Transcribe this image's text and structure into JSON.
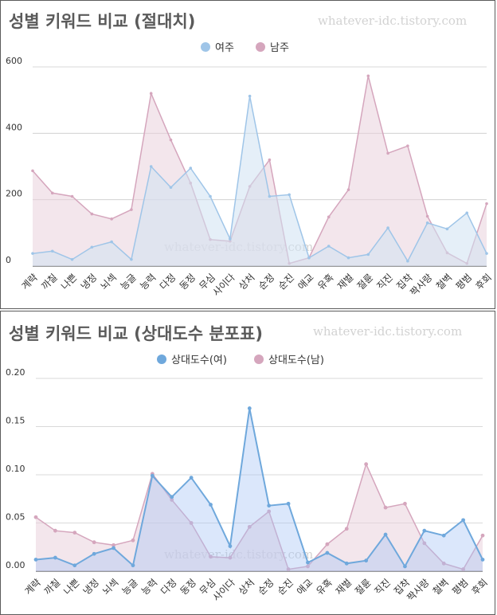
{
  "watermark": "whatever-idc.tistory.com",
  "colors": {
    "female_light": "#9fc5e8",
    "male_light": "#d5a6bd",
    "female_dark": "#6fa8dc",
    "male_dark": "#d5a6bd"
  },
  "charts": [
    {
      "title": "성별 키워드 비교 (절대치)",
      "legend": [
        {
          "label": "여주",
          "color": "#9fc5e8"
        },
        {
          "label": "남주",
          "color": "#d5a6bd"
        }
      ]
    },
    {
      "title": "성별 키워드 비교 (상대도수 분포표)",
      "legend": [
        {
          "label": "상대도수(여)",
          "color": "#6fa8dc"
        },
        {
          "label": "상대도수(남)",
          "color": "#d5a6bd"
        }
      ]
    }
  ],
  "chart_data": [
    {
      "type": "area",
      "title": "성별 키워드 비교 (절대치)",
      "categories": [
        "계략",
        "까칠",
        "나쁜",
        "냉정",
        "뇌섹",
        "능글",
        "능력",
        "다정",
        "동정",
        "무심",
        "사이다",
        "상처",
        "순정",
        "순진",
        "애교",
        "유혹",
        "재벌",
        "절륜",
        "직진",
        "집착",
        "짝사랑",
        "철벽",
        "평범",
        "후회"
      ],
      "yticks": [
        "0",
        "200",
        "400",
        "600"
      ],
      "ylim": [
        0,
        600
      ],
      "grid": true,
      "legend_position": "top",
      "series": [
        {
          "name": "여주",
          "color": "#9fc5e8",
          "values": [
            38,
            45,
            20,
            57,
            73,
            20,
            300,
            237,
            295,
            210,
            82,
            512,
            210,
            215,
            25,
            60,
            25,
            35,
            115,
            15,
            130,
            112,
            160,
            38
          ]
        },
        {
          "name": "남주",
          "color": "#d5a6bd",
          "values": [
            287,
            220,
            210,
            157,
            142,
            170,
            520,
            380,
            250,
            80,
            75,
            240,
            320,
            8,
            25,
            148,
            230,
            573,
            340,
            362,
            150,
            40,
            8,
            188
          ]
        }
      ]
    },
    {
      "type": "area",
      "title": "성별 키워드 비교 (상대도수 분포표)",
      "categories": [
        "계략",
        "까칠",
        "나쁜",
        "냉정",
        "뇌섹",
        "능글",
        "능력",
        "다정",
        "동정",
        "무심",
        "사이다",
        "상처",
        "순정",
        "순진",
        "애교",
        "유혹",
        "재벌",
        "절륜",
        "직진",
        "집착",
        "짝사랑",
        "철벽",
        "평범",
        "후회"
      ],
      "yticks": [
        "0.00",
        "0.05",
        "0.10",
        "0.15",
        "0.20"
      ],
      "ylim": [
        0,
        0.2
      ],
      "grid": true,
      "legend_position": "top",
      "series": [
        {
          "name": "상대도수(여)",
          "color": "#6fa8dc",
          "values": [
            0.012,
            0.014,
            0.006,
            0.018,
            0.024,
            0.006,
            0.099,
            0.077,
            0.097,
            0.069,
            0.026,
            0.169,
            0.068,
            0.07,
            0.009,
            0.019,
            0.008,
            0.011,
            0.038,
            0.005,
            0.042,
            0.037,
            0.053,
            0.012
          ]
        },
        {
          "name": "상대도수(남)",
          "color": "#d5a6bd",
          "values": [
            0.056,
            0.042,
            0.04,
            0.03,
            0.027,
            0.032,
            0.101,
            0.074,
            0.05,
            0.015,
            0.014,
            0.046,
            0.062,
            0.002,
            0.005,
            0.028,
            0.044,
            0.111,
            0.066,
            0.07,
            0.029,
            0.008,
            0.002,
            0.037
          ]
        }
      ]
    }
  ]
}
